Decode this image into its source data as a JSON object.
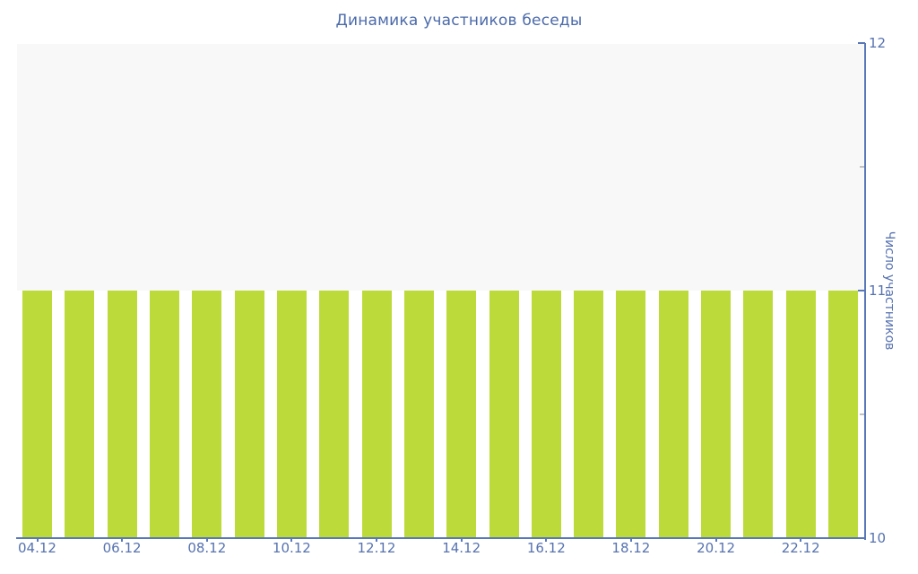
{
  "chart_data": {
    "type": "bar",
    "title": "Динамика участников беседы",
    "ylabel": "Число участников",
    "xlabel": "",
    "ylim": [
      10,
      12
    ],
    "grid": false,
    "legend": null,
    "x_tick_labels": [
      "04.12",
      "06.12",
      "08.12",
      "10.12",
      "12.12",
      "14.12",
      "16.12",
      "18.12",
      "20.12",
      "22.12"
    ],
    "x_tick_every_n_bars": 2,
    "y_tick_labels": [
      "10",
      "11",
      "12"
    ],
    "y_minor_ticks": [
      10.5,
      11.5
    ],
    "values": [
      11,
      11,
      11,
      11,
      11,
      11,
      11,
      11,
      11,
      11,
      11,
      11,
      11,
      11,
      11,
      11,
      11,
      11,
      11,
      11
    ],
    "colors": {
      "bar": "#bcdb3a",
      "band_above": "#f8f8f8",
      "axis": "#5a78b8",
      "tick_text": "#5672b0",
      "title_text": "#4b6aaa",
      "minor_tick": "#c2c2c2"
    }
  }
}
